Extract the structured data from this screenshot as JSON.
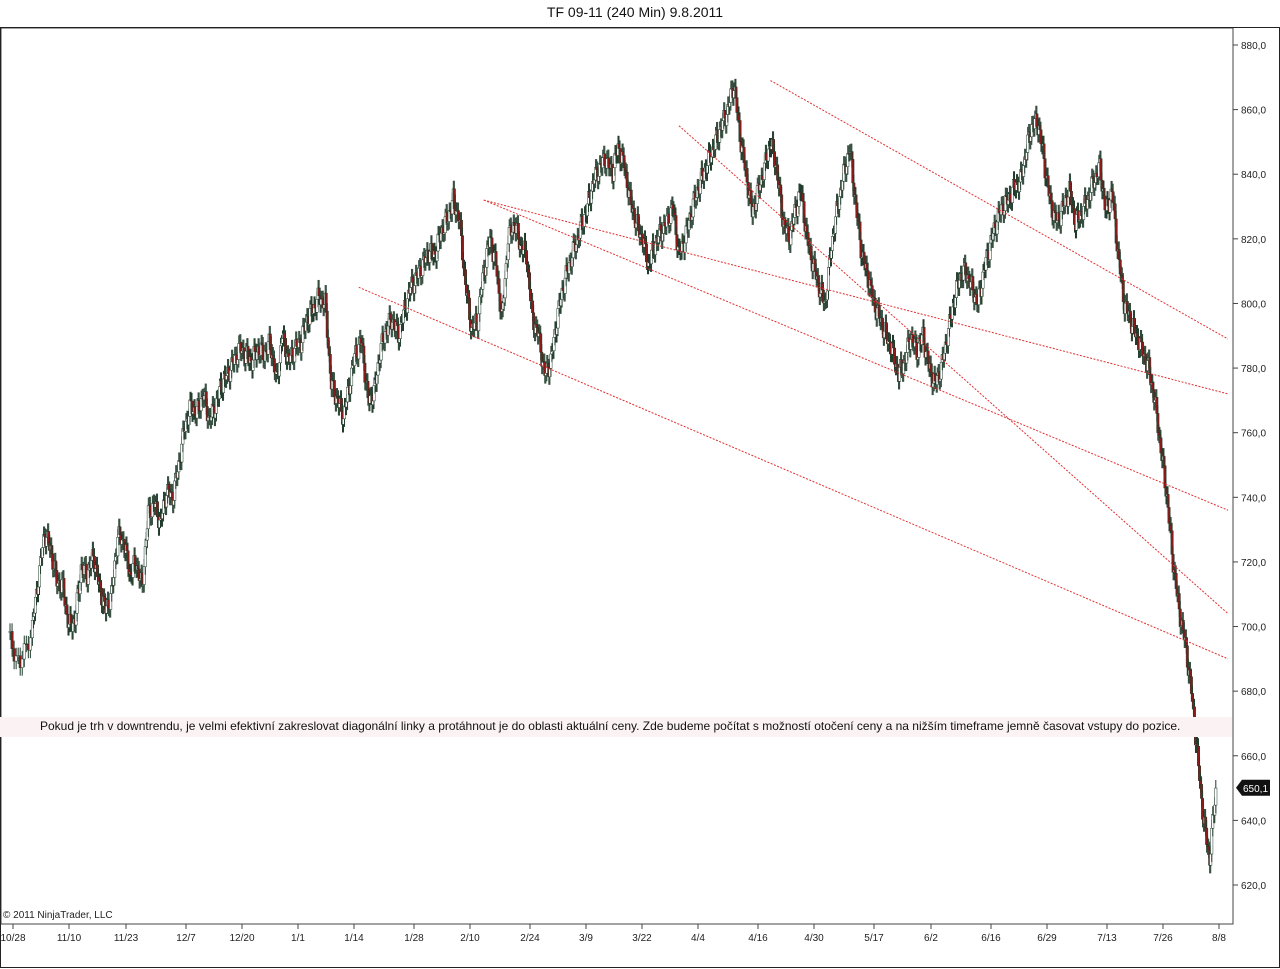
{
  "chart_data": {
    "type": "candlestick",
    "title": "TF 09-11 (240 Min)  9.8.2011",
    "x_tick_labels": [
      "10/28",
      "11/10",
      "11/23",
      "12/7",
      "12/20",
      "1/1",
      "1/14",
      "1/28",
      "2/10",
      "2/24",
      "3/9",
      "3/22",
      "4/4",
      "4/16",
      "4/30",
      "5/17",
      "6/2",
      "6/16",
      "6/29",
      "7/13",
      "7/26",
      "8/8"
    ],
    "y_tick_labels": [
      "880,0",
      "860,0",
      "840,0",
      "820,0",
      "800,0",
      "780,0",
      "760,0",
      "740,0",
      "720,0",
      "700,0",
      "680,0",
      "660,0",
      "640,0",
      "620,0"
    ],
    "ylim": [
      616,
      885
    ],
    "last_price": 650.1,
    "last_price_label": "650,1",
    "price_path": [
      [
        0,
        697
      ],
      [
        2,
        688
      ],
      [
        4,
        700
      ],
      [
        5,
        715
      ],
      [
        6,
        729
      ],
      [
        7,
        724
      ],
      [
        8,
        714
      ],
      [
        9,
        712
      ],
      [
        10,
        700
      ],
      [
        11,
        702
      ],
      [
        12,
        718
      ],
      [
        13,
        716
      ],
      [
        14,
        722
      ],
      [
        15,
        712
      ],
      [
        16,
        705
      ],
      [
        17,
        710
      ],
      [
        18,
        728
      ],
      [
        19,
        726
      ],
      [
        20,
        716
      ],
      [
        21,
        720
      ],
      [
        22,
        712
      ],
      [
        23,
        735
      ],
      [
        24,
        738
      ],
      [
        25,
        732
      ],
      [
        26,
        742
      ],
      [
        27,
        740
      ],
      [
        28,
        750
      ],
      [
        29,
        762
      ],
      [
        30,
        768
      ],
      [
        31,
        766
      ],
      [
        32,
        772
      ],
      [
        33,
        764
      ],
      [
        34,
        768
      ],
      [
        35,
        775
      ],
      [
        36,
        778
      ],
      [
        37,
        782
      ],
      [
        38,
        786
      ],
      [
        39,
        784
      ],
      [
        40,
        782
      ],
      [
        41,
        786
      ],
      [
        42,
        784
      ],
      [
        43,
        788
      ],
      [
        44,
        776
      ],
      [
        45,
        790
      ],
      [
        46,
        782
      ],
      [
        47,
        786
      ],
      [
        48,
        788
      ],
      [
        49,
        795
      ],
      [
        50,
        798
      ],
      [
        51,
        802
      ],
      [
        52,
        800
      ],
      [
        53,
        775
      ],
      [
        54,
        770
      ],
      [
        55,
        765
      ],
      [
        56,
        775
      ],
      [
        57,
        785
      ],
      [
        58,
        788
      ],
      [
        59,
        770
      ],
      [
        60,
        772
      ],
      [
        61,
        785
      ],
      [
        62,
        792
      ],
      [
        63,
        795
      ],
      [
        64,
        790
      ],
      [
        65,
        798
      ],
      [
        66,
        805
      ],
      [
        67,
        808
      ],
      [
        68,
        812
      ],
      [
        69,
        816
      ],
      [
        70,
        815
      ],
      [
        71,
        822
      ],
      [
        72,
        826
      ],
      [
        73,
        832
      ],
      [
        74,
        826
      ],
      [
        75,
        806
      ],
      [
        76,
        792
      ],
      [
        77,
        795
      ],
      [
        78,
        810
      ],
      [
        79,
        820
      ],
      [
        80,
        812
      ],
      [
        81,
        795
      ],
      [
        82,
        820
      ],
      [
        83,
        825
      ],
      [
        84,
        818
      ],
      [
        85,
        815
      ],
      [
        86,
        795
      ],
      [
        87,
        790
      ],
      [
        88,
        778
      ],
      [
        89,
        782
      ],
      [
        90,
        795
      ],
      [
        91,
        805
      ],
      [
        92,
        812
      ],
      [
        93,
        818
      ],
      [
        94,
        824
      ],
      [
        95,
        830
      ],
      [
        96,
        838
      ],
      [
        97,
        842
      ],
      [
        98,
        845
      ],
      [
        99,
        840
      ],
      [
        100,
        848
      ],
      [
        101,
        843
      ],
      [
        102,
        832
      ],
      [
        103,
        825
      ],
      [
        104,
        820
      ],
      [
        105,
        812
      ],
      [
        106,
        818
      ],
      [
        107,
        822
      ],
      [
        108,
        825
      ],
      [
        109,
        830
      ],
      [
        110,
        815
      ],
      [
        111,
        820
      ],
      [
        112,
        828
      ],
      [
        113,
        835
      ],
      [
        114,
        840
      ],
      [
        115,
        845
      ],
      [
        116,
        850
      ],
      [
        117,
        855
      ],
      [
        118,
        860
      ],
      [
        119,
        868
      ],
      [
        120,
        852
      ],
      [
        121,
        840
      ],
      [
        122,
        828
      ],
      [
        123,
        835
      ],
      [
        124,
        842
      ],
      [
        125,
        850
      ],
      [
        126,
        842
      ],
      [
        127,
        826
      ],
      [
        128,
        820
      ],
      [
        129,
        828
      ],
      [
        130,
        835
      ],
      [
        131,
        820
      ],
      [
        132,
        812
      ],
      [
        133,
        805
      ],
      [
        134,
        800
      ],
      [
        135,
        818
      ],
      [
        136,
        830
      ],
      [
        137,
        840
      ],
      [
        138,
        848
      ],
      [
        139,
        830
      ],
      [
        140,
        815
      ],
      [
        141,
        808
      ],
      [
        142,
        800
      ],
      [
        143,
        795
      ],
      [
        144,
        790
      ],
      [
        145,
        785
      ],
      [
        146,
        778
      ],
      [
        147,
        782
      ],
      [
        148,
        790
      ],
      [
        149,
        785
      ],
      [
        150,
        790
      ],
      [
        151,
        780
      ],
      [
        152,
        775
      ],
      [
        153,
        780
      ],
      [
        154,
        790
      ],
      [
        155,
        800
      ],
      [
        156,
        808
      ],
      [
        157,
        810
      ],
      [
        158,
        805
      ],
      [
        159,
        800
      ],
      [
        160,
        810
      ],
      [
        161,
        818
      ],
      [
        162,
        825
      ],
      [
        163,
        830
      ],
      [
        164,
        832
      ],
      [
        165,
        836
      ],
      [
        166,
        838
      ],
      [
        167,
        848
      ],
      [
        168,
        856
      ],
      [
        169,
        855
      ],
      [
        170,
        842
      ],
      [
        171,
        830
      ],
      [
        172,
        825
      ],
      [
        173,
        830
      ],
      [
        174,
        835
      ],
      [
        175,
        825
      ],
      [
        176,
        828
      ],
      [
        177,
        832
      ],
      [
        178,
        838
      ],
      [
        179,
        842
      ],
      [
        180,
        828
      ],
      [
        181,
        835
      ],
      [
        182,
        815
      ],
      [
        183,
        800
      ],
      [
        184,
        795
      ],
      [
        185,
        790
      ],
      [
        186,
        785
      ],
      [
        187,
        780
      ],
      [
        188,
        770
      ],
      [
        189,
        755
      ],
      [
        190,
        740
      ],
      [
        191,
        720
      ],
      [
        192,
        705
      ],
      [
        193,
        695
      ],
      [
        194,
        680
      ],
      [
        195,
        660
      ],
      [
        196,
        640
      ],
      [
        197,
        628
      ],
      [
        198,
        650
      ]
    ],
    "trendlines": [
      {
        "from": [
          57.5,
          805
        ],
        "to": [
          200,
          690
        ]
      },
      {
        "from": [
          78,
          832
        ],
        "to": [
          200,
          736
        ]
      },
      {
        "from": [
          78,
          832
        ],
        "to": [
          200,
          772
        ]
      },
      {
        "from": [
          110,
          855
        ],
        "to": [
          200,
          704
        ]
      },
      {
        "from": [
          125,
          869
        ],
        "to": [
          200,
          789
        ]
      }
    ],
    "colors": {
      "price_line": "#1f3a2a",
      "down_candle": "#8b1a1a",
      "trendline": "#e03030",
      "grid_tick": "#444444",
      "last_price_bg": "#111111"
    }
  },
  "annotation": {
    "text": "Pokud je trh v downtrendu, je velmi efektivní zakreslovat diagonální linky a protáhnout je do oblasti aktuální ceny. Zde budeme počítat s možností otočení ceny a na nižším timeframe jemně časovat vstupy do pozice."
  },
  "copyright": "© 2011 NinjaTrader, LLC"
}
